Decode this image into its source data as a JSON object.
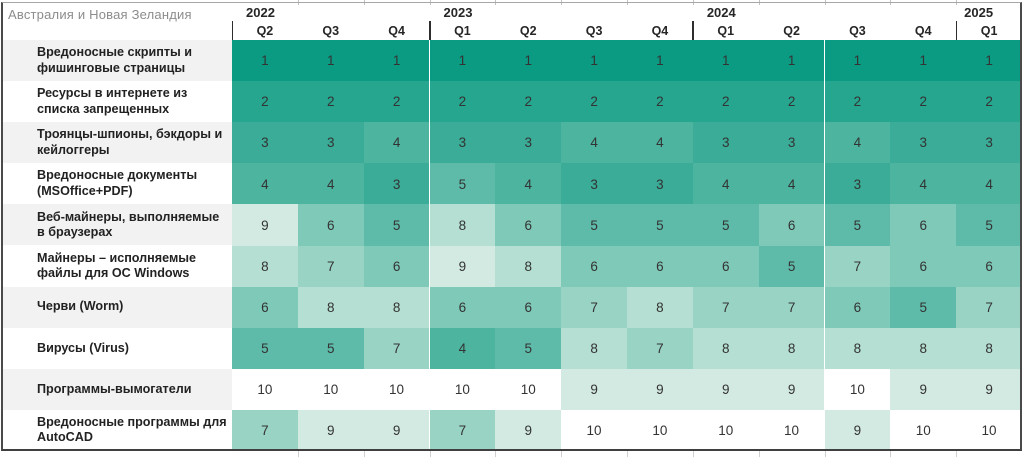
{
  "title": "Австралия и Новая Зеландия",
  "colors": {
    "title_text": "#8c8c8c",
    "header_text": "#262626",
    "label_text": "#222222",
    "cell_text": "#333333",
    "label_stripe": "#f2f2f2",
    "frame_border": "#4a4a4a",
    "tick": "#c2c2c2"
  },
  "palette": {
    "1": "#0a9b82",
    "2": "#26a68f",
    "3": "#3aac97",
    "4": "#4db4a0",
    "5": "#5ebba9",
    "6": "#7fc9b8",
    "7": "#99d3c3",
    "8": "#b5dfd2",
    "9": "#d3eae2",
    "10": "#ffffff"
  },
  "chart_data": {
    "type": "heatmap",
    "title": "Австралия и Новая Зеландия",
    "legend_position": "none",
    "grid": false,
    "value_range": [
      1,
      10
    ],
    "column_groups": [
      {
        "year": "2022",
        "quarters": [
          "Q2",
          "Q3",
          "Q4"
        ]
      },
      {
        "year": "2023",
        "quarters": [
          "Q1",
          "Q2",
          "Q3",
          "Q4"
        ]
      },
      {
        "year": "2024",
        "quarters": [
          "Q1",
          "Q2",
          "Q3",
          "Q4"
        ]
      },
      {
        "year": "2025",
        "quarters": [
          "Q1"
        ]
      }
    ],
    "rows": [
      {
        "label": "Вредоносные скрипты и фишинговые страницы",
        "values": [
          1,
          1,
          1,
          1,
          1,
          1,
          1,
          1,
          1,
          1,
          1,
          1
        ]
      },
      {
        "label": "Ресурсы в интернете из списка запрещенных",
        "values": [
          2,
          2,
          2,
          2,
          2,
          2,
          2,
          2,
          2,
          2,
          2,
          2
        ]
      },
      {
        "label": "Троянцы-шпионы, бэкдоры и кейлоггеры",
        "values": [
          3,
          3,
          4,
          3,
          3,
          4,
          4,
          3,
          3,
          4,
          3,
          3
        ]
      },
      {
        "label": "Вредоносные документы (MSOffice+PDF)",
        "values": [
          4,
          4,
          3,
          5,
          4,
          3,
          3,
          4,
          4,
          3,
          4,
          4
        ]
      },
      {
        "label": "Веб-майнеры, выполняемые в браузерах",
        "values": [
          9,
          6,
          5,
          8,
          6,
          5,
          5,
          5,
          6,
          5,
          6,
          5
        ]
      },
      {
        "label": "Майнеры – исполняемые файлы для ОС Windows",
        "values": [
          8,
          7,
          6,
          9,
          8,
          6,
          6,
          6,
          5,
          7,
          6,
          6
        ]
      },
      {
        "label": "Черви (Worm)",
        "values": [
          6,
          8,
          8,
          6,
          6,
          7,
          8,
          7,
          7,
          6,
          5,
          7
        ]
      },
      {
        "label": "Вирусы (Virus)",
        "values": [
          5,
          5,
          7,
          4,
          5,
          8,
          7,
          8,
          8,
          8,
          8,
          8
        ]
      },
      {
        "label": "Программы-вымогатели",
        "values": [
          10,
          10,
          10,
          10,
          10,
          9,
          9,
          9,
          9,
          10,
          9,
          9
        ]
      },
      {
        "label": "Вредоносные программы для AutoCAD",
        "values": [
          7,
          9,
          9,
          7,
          9,
          10,
          10,
          10,
          10,
          9,
          10,
          10
        ]
      }
    ]
  }
}
